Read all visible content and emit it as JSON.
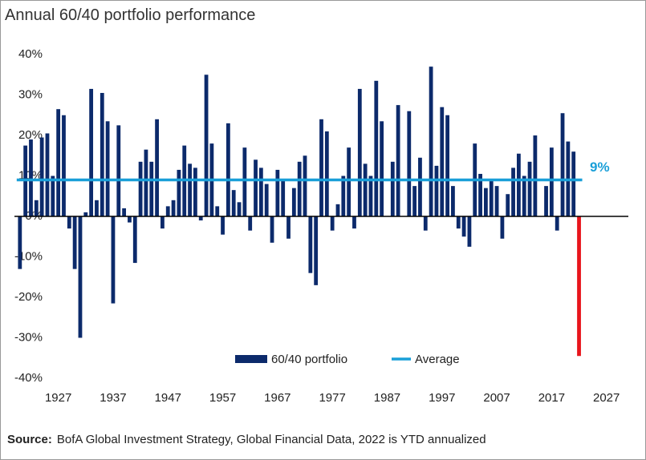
{
  "chart_data": {
    "type": "bar",
    "title": "Annual 60/40 portfolio performance",
    "x": [
      1920,
      1921,
      1922,
      1923,
      1924,
      1925,
      1926,
      1927,
      1928,
      1929,
      1930,
      1931,
      1932,
      1933,
      1934,
      1935,
      1936,
      1937,
      1938,
      1939,
      1940,
      1941,
      1942,
      1943,
      1944,
      1945,
      1946,
      1947,
      1948,
      1949,
      1950,
      1951,
      1952,
      1953,
      1954,
      1955,
      1956,
      1957,
      1958,
      1959,
      1960,
      1961,
      1962,
      1963,
      1964,
      1965,
      1966,
      1967,
      1968,
      1969,
      1970,
      1971,
      1972,
      1973,
      1974,
      1975,
      1976,
      1977,
      1978,
      1979,
      1980,
      1981,
      1982,
      1983,
      1984,
      1985,
      1986,
      1987,
      1988,
      1989,
      1990,
      1991,
      1992,
      1993,
      1994,
      1995,
      1996,
      1997,
      1998,
      1999,
      2000,
      2001,
      2002,
      2003,
      2004,
      2005,
      2006,
      2007,
      2008,
      2009,
      2010,
      2011,
      2012,
      2013,
      2014,
      2015,
      2016,
      2017,
      2018,
      2019,
      2020,
      2021,
      2022
    ],
    "series": [
      {
        "name": "60/40 portfolio",
        "color": "#0c2a6b",
        "values": [
          -13,
          17.5,
          19,
          4,
          19.5,
          20.5,
          10,
          26.5,
          25,
          -3,
          -13,
          -30,
          1,
          31.5,
          4,
          30.5,
          23.5,
          -21.5,
          22.5,
          2,
          -1.5,
          -11.5,
          13.5,
          16.5,
          13.5,
          24,
          -3,
          2.5,
          4,
          11.5,
          17.5,
          13,
          12,
          -1,
          35,
          18,
          2.5,
          -4.5,
          23,
          6.5,
          3.5,
          17,
          -3.5,
          14,
          12,
          8,
          -6.5,
          11.5,
          9,
          -5.5,
          7,
          13.5,
          15,
          -14,
          -17,
          24,
          21,
          -3.5,
          3,
          10,
          17,
          -3,
          31.5,
          13,
          10,
          33.5,
          23.5,
          0,
          13.5,
          27.5,
          0,
          26,
          7.5,
          14.5,
          -3.5,
          37,
          12.5,
          27,
          25,
          7.5,
          -3,
          -5,
          -7.5,
          18,
          10.5,
          7,
          9,
          7.5,
          -5.5,
          5.5,
          12,
          15.5,
          10,
          13.5,
          20,
          0,
          7.5,
          17,
          -3.5,
          25.5,
          18.5,
          16,
          -34.5
        ],
        "colors": [
          "#0c2a6b",
          "#0c2a6b",
          "#0c2a6b",
          "#0c2a6b",
          "#0c2a6b",
          "#0c2a6b",
          "#0c2a6b",
          "#0c2a6b",
          "#0c2a6b",
          "#0c2a6b",
          "#0c2a6b",
          "#0c2a6b",
          "#0c2a6b",
          "#0c2a6b",
          "#0c2a6b",
          "#0c2a6b",
          "#0c2a6b",
          "#0c2a6b",
          "#0c2a6b",
          "#0c2a6b",
          "#0c2a6b",
          "#0c2a6b",
          "#0c2a6b",
          "#0c2a6b",
          "#0c2a6b",
          "#0c2a6b",
          "#0c2a6b",
          "#0c2a6b",
          "#0c2a6b",
          "#0c2a6b",
          "#0c2a6b",
          "#0c2a6b",
          "#0c2a6b",
          "#0c2a6b",
          "#0c2a6b",
          "#0c2a6b",
          "#0c2a6b",
          "#0c2a6b",
          "#0c2a6b",
          "#0c2a6b",
          "#0c2a6b",
          "#0c2a6b",
          "#0c2a6b",
          "#0c2a6b",
          "#0c2a6b",
          "#0c2a6b",
          "#0c2a6b",
          "#0c2a6b",
          "#0c2a6b",
          "#0c2a6b",
          "#0c2a6b",
          "#0c2a6b",
          "#0c2a6b",
          "#0c2a6b",
          "#0c2a6b",
          "#0c2a6b",
          "#0c2a6b",
          "#0c2a6b",
          "#0c2a6b",
          "#0c2a6b",
          "#0c2a6b",
          "#0c2a6b",
          "#0c2a6b",
          "#0c2a6b",
          "#0c2a6b",
          "#0c2a6b",
          "#0c2a6b",
          "#0c2a6b",
          "#0c2a6b",
          "#0c2a6b",
          "#0c2a6b",
          "#0c2a6b",
          "#0c2a6b",
          "#0c2a6b",
          "#0c2a6b",
          "#0c2a6b",
          "#0c2a6b",
          "#0c2a6b",
          "#0c2a6b",
          "#0c2a6b",
          "#0c2a6b",
          "#0c2a6b",
          "#0c2a6b",
          "#0c2a6b",
          "#0c2a6b",
          "#0c2a6b",
          "#0c2a6b",
          "#0c2a6b",
          "#0c2a6b",
          "#0c2a6b",
          "#0c2a6b",
          "#0c2a6b",
          "#0c2a6b",
          "#0c2a6b",
          "#0c2a6b",
          "#0c2a6b",
          "#0c2a6b",
          "#0c2a6b",
          "#0c2a6b",
          "#0c2a6b",
          "#0c2a6b",
          "#0c2a6b",
          "#e8141b"
        ]
      }
    ],
    "average": {
      "name": "Average",
      "value": 9,
      "value_label": "9%",
      "color": "#1a9fd8"
    },
    "xlim": [
      1919,
      2031
    ],
    "xticks": [
      1927,
      1937,
      1947,
      1957,
      1967,
      1977,
      1987,
      1997,
      2007,
      2017,
      2027
    ],
    "ylim": [
      -40,
      40
    ],
    "yticks": [
      {
        "value": -40,
        "label": "-40%"
      },
      {
        "value": -30,
        "label": "-30%"
      },
      {
        "value": -20,
        "label": "-20%"
      },
      {
        "value": -10,
        "label": "-10%"
      },
      {
        "value": 0,
        "label": "0%"
      },
      {
        "value": 10,
        "label": "10%"
      },
      {
        "value": 20,
        "label": "20%"
      },
      {
        "value": 30,
        "label": "30%"
      },
      {
        "value": 40,
        "label": "40%"
      }
    ],
    "grid": false,
    "source_label": "Source:",
    "source": "BofA Global Investment Strategy, Global Financial Data, 2022  is YTD annualized"
  }
}
